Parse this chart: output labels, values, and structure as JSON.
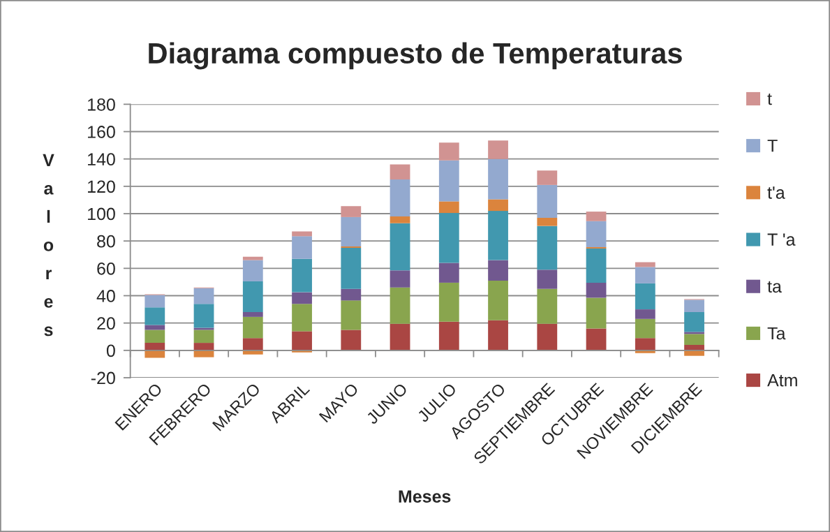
{
  "chart_data": {
    "type": "bar",
    "title": "Diagrama compuesto de Temperaturas",
    "xlabel": "Meses",
    "ylabel": "Valores",
    "categories": [
      "ENERO",
      "FEBRERO",
      "MARZO",
      "ABRIL",
      "MAYO",
      "JUNIO",
      "JULIO",
      "AGOSTO",
      "SEPTIEMBRE",
      "OCTUBRE",
      "NOVIEMBRE",
      "DICIEMBRE"
    ],
    "stacked": true,
    "series": [
      {
        "name": "Atm",
        "color": "#aa4643",
        "values": [
          5.5,
          5.5,
          9,
          14,
          15,
          19.5,
          21,
          22,
          19.5,
          16,
          9,
          4
        ]
      },
      {
        "name": "Ta",
        "color": "#89a54e",
        "values": [
          9.5,
          9.5,
          15.5,
          20,
          21.5,
          26.5,
          28.5,
          29,
          25.5,
          22.5,
          14,
          8
        ]
      },
      {
        "name": "ta",
        "color": "#71588f",
        "values": [
          3.5,
          1.5,
          3.5,
          8.5,
          8.5,
          12.5,
          14.5,
          15,
          14,
          11,
          7,
          1.5
        ]
      },
      {
        "name": "T 'a",
        "color": "#4198af",
        "values": [
          13,
          17.5,
          22.5,
          24.5,
          30,
          34.5,
          36.5,
          36,
          32,
          25,
          19,
          14.5
        ]
      },
      {
        "name": "t'a",
        "color": "#db843d",
        "values": [
          -5.5,
          -5,
          -3,
          -1.5,
          1,
          5,
          8.5,
          8.5,
          6,
          1,
          -2,
          -4
        ]
      },
      {
        "name": "T",
        "color": "#93a9cf",
        "values": [
          9,
          11.5,
          15.5,
          16.5,
          21.5,
          27,
          30,
          29.5,
          24,
          19,
          12,
          9
        ]
      },
      {
        "name": "t",
        "color": "#d19392",
        "values": [
          0.5,
          0.5,
          2.5,
          3.5,
          8,
          11,
          13,
          13.5,
          10.5,
          7,
          3.5,
          0.5
        ]
      }
    ],
    "ylim": [
      -20,
      180
    ],
    "yticks": [
      -20,
      0,
      20,
      40,
      60,
      80,
      100,
      120,
      140,
      160,
      180
    ],
    "grid": "y",
    "legend": "right"
  }
}
